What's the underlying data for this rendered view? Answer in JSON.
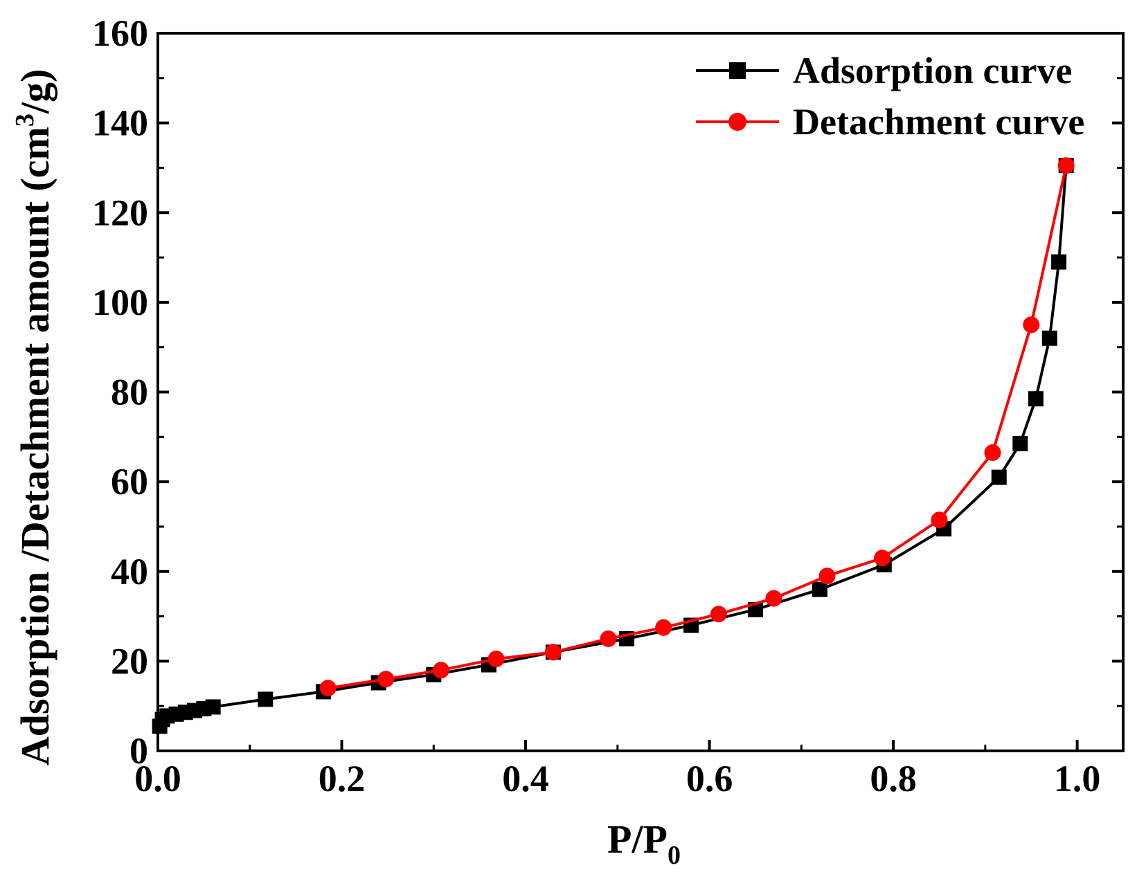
{
  "chart_data": {
    "type": "line",
    "xlabel": {
      "main": "P/P",
      "sub": "0"
    },
    "ylabel": {
      "main": "Adsorption /Detachment  amount (cm",
      "sup": "3",
      "tail": "/g)"
    },
    "xlim": [
      0.0,
      1.05
    ],
    "ylim": [
      0,
      160
    ],
    "xticks": [
      "0.0",
      "0.2",
      "0.4",
      "0.6",
      "0.8",
      "1.0"
    ],
    "xtick_values": [
      0.0,
      0.2,
      0.4,
      0.6,
      0.8,
      1.0
    ],
    "yticks": [
      "0",
      "20",
      "40",
      "60",
      "80",
      "100",
      "120",
      "140",
      "160"
    ],
    "ytick_values": [
      0,
      20,
      40,
      60,
      80,
      100,
      120,
      140,
      160
    ],
    "grid": false,
    "legend_position": "top-right",
    "series": [
      {
        "name": "Adsorption curve",
        "color": "#000000",
        "marker": "square",
        "x": [
          0.002,
          0.005,
          0.01,
          0.02,
          0.03,
          0.04,
          0.05,
          0.06,
          0.117,
          0.18,
          0.24,
          0.3,
          0.36,
          0.43,
          0.51,
          0.58,
          0.65,
          0.72,
          0.79,
          0.855,
          0.915,
          0.938,
          0.955,
          0.97,
          0.98,
          0.988
        ],
        "y": [
          5.5,
          7.0,
          7.8,
          8.2,
          8.6,
          9.0,
          9.4,
          9.8,
          11.5,
          13.2,
          15.2,
          17.0,
          19.2,
          22.0,
          25.0,
          28.0,
          31.5,
          36.0,
          41.5,
          49.5,
          61.0,
          68.5,
          78.5,
          92.0,
          109.0,
          130.5
        ]
      },
      {
        "name": "Detachment curve",
        "color": "#ff0000",
        "marker": "circle",
        "x": [
          0.185,
          0.248,
          0.308,
          0.368,
          0.43,
          0.49,
          0.55,
          0.61,
          0.67,
          0.728,
          0.788,
          0.85,
          0.908,
          0.95,
          0.988
        ],
        "y": [
          14.0,
          16.0,
          18.0,
          20.5,
          22.0,
          25.0,
          27.5,
          30.5,
          34.0,
          39.0,
          43.0,
          51.5,
          66.5,
          95.0,
          130.5
        ]
      }
    ]
  }
}
